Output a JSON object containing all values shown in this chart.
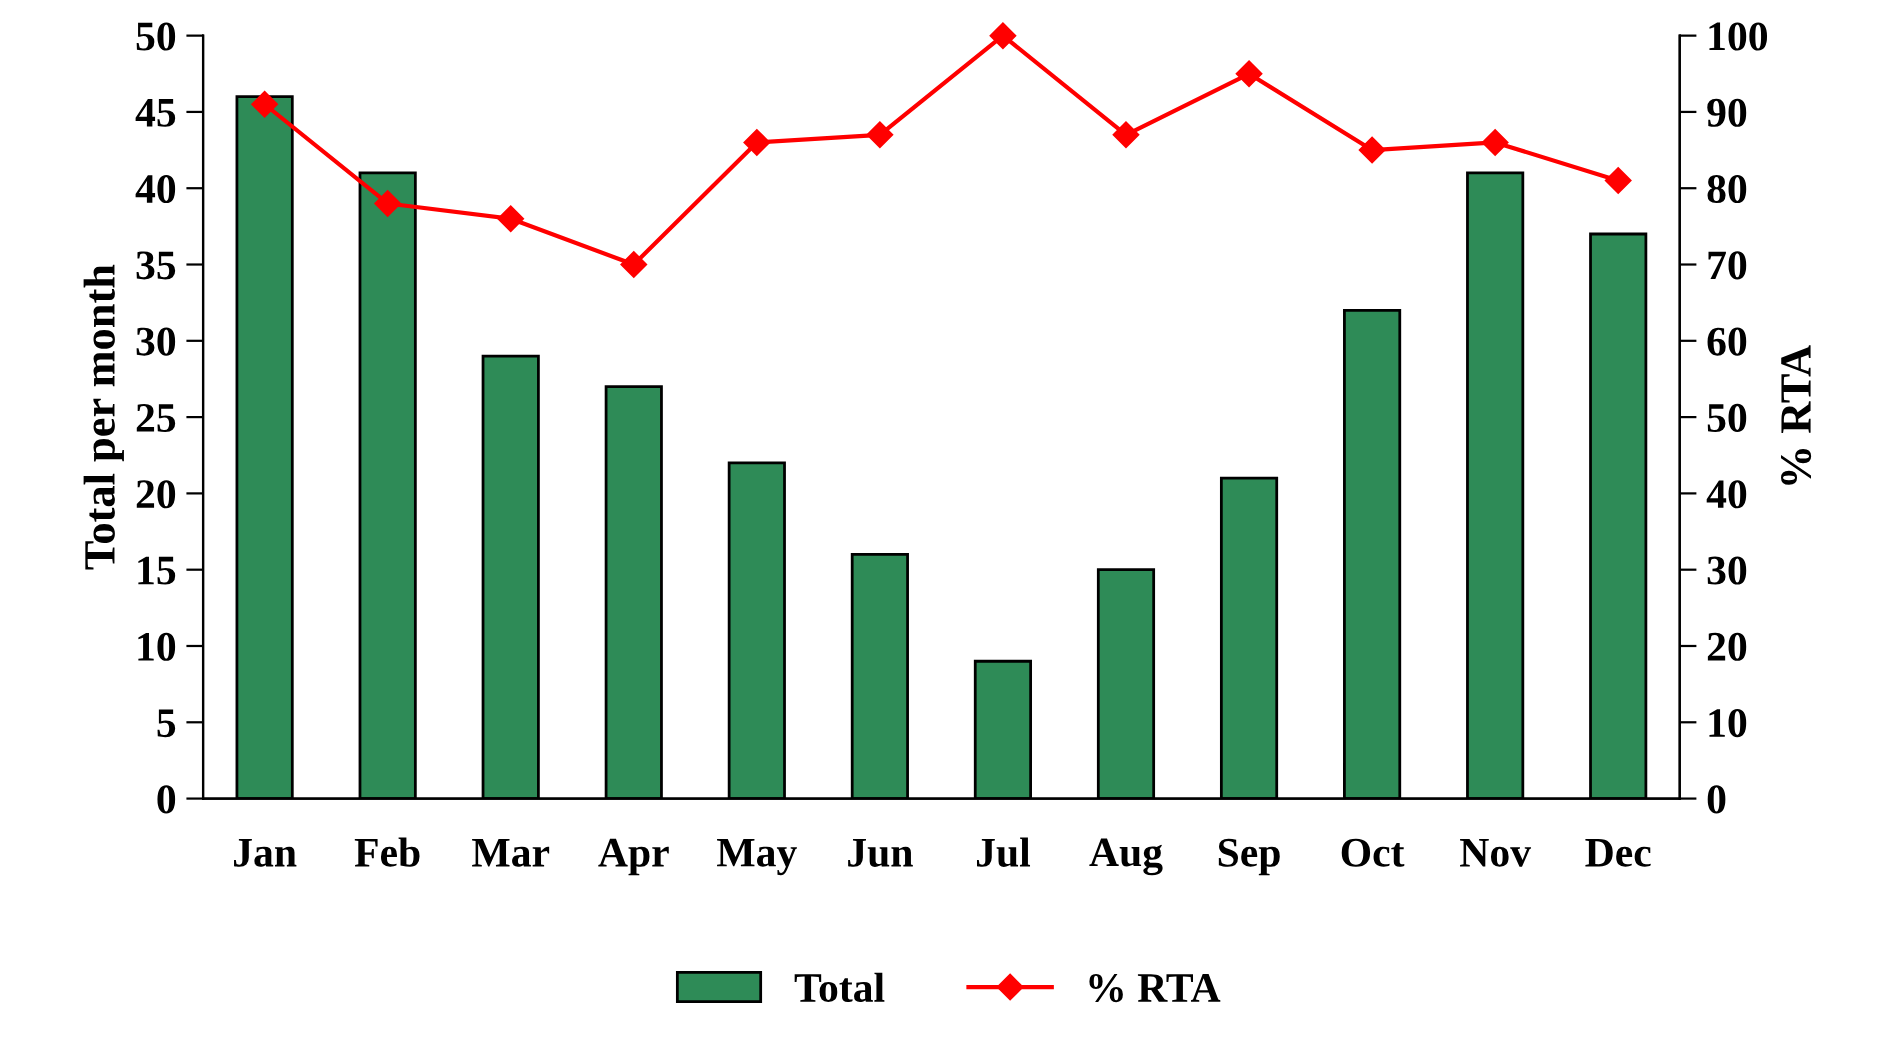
{
  "chart_data": {
    "type": "bar",
    "ylabel": "Total per month",
    "y2label": "% RTA",
    "categories": [
      "Jan",
      "Feb",
      "Mar",
      "Apr",
      "May",
      "Jun",
      "Jul",
      "Aug",
      "Sep",
      "Oct",
      "Nov",
      "Dec"
    ],
    "series": [
      {
        "name": "Total",
        "color": "#2e8b57",
        "values": [
          46,
          41,
          29,
          27,
          22,
          16,
          9,
          15,
          21,
          32,
          41,
          37
        ]
      },
      {
        "name": "% RTA",
        "type": "line",
        "axis": "y2",
        "color": "#ff0000",
        "marker": "diamond",
        "values": [
          91,
          78,
          76,
          70,
          86,
          87,
          100,
          87,
          95,
          85,
          86,
          81
        ]
      }
    ],
    "ylim": [
      0,
      50
    ],
    "yticks": [
      0,
      5,
      10,
      15,
      20,
      25,
      30,
      35,
      40,
      45,
      50
    ],
    "y2lim": [
      0,
      100
    ],
    "y2ticks": [
      0,
      10,
      20,
      30,
      40,
      50,
      60,
      70,
      80,
      90,
      100
    ],
    "grid": false,
    "legend": "bottom"
  }
}
